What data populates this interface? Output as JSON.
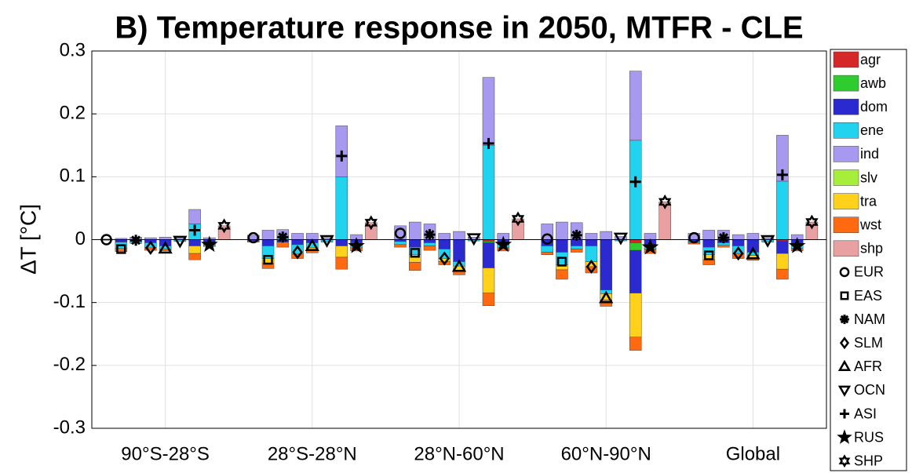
{
  "chart_data": {
    "type": "grouped-stacked-bar",
    "title": "B) Temperature response in 2050, MTFR - CLE",
    "ylabel": "ΔT [°C]",
    "groups": [
      "90°S-28°S",
      "28°S-28°N",
      "28°N-60°N",
      "60°N-90°N",
      "Global"
    ],
    "ylim": [
      -0.3,
      0.3
    ],
    "yticks": [
      -0.3,
      -0.2,
      -0.1,
      0,
      0.1,
      0.2,
      0.3
    ],
    "grid": true,
    "legend": "outside-right",
    "series": [
      {
        "name": "agr",
        "color": "#d62728",
        "values": [
          [
            0,
            0,
            0,
            0,
            0,
            0,
            0,
            0,
            0
          ],
          [
            0,
            0,
            0,
            0,
            0,
            0,
            0,
            0,
            0
          ],
          [
            0,
            0,
            0,
            0,
            0,
            0,
            -0.003,
            0,
            0
          ],
          [
            0,
            0,
            0,
            0,
            0,
            0,
            -0.005,
            0,
            0
          ],
          [
            0,
            0,
            0,
            0,
            0,
            0,
            -0.002,
            0,
            0
          ]
        ]
      },
      {
        "name": "awb",
        "color": "#2ecc2e",
        "values": [
          [
            0,
            0,
            0,
            0,
            0,
            0,
            0,
            0,
            0
          ],
          [
            0,
            0,
            0,
            0,
            0,
            0,
            0,
            0,
            0
          ],
          [
            0,
            0,
            0,
            0,
            0,
            0,
            -0.002,
            0,
            0
          ],
          [
            0,
            0,
            0,
            0,
            0,
            0,
            -0.012,
            0,
            0
          ],
          [
            0,
            0,
            0,
            0,
            0,
            0,
            0,
            0,
            0
          ]
        ]
      },
      {
        "name": "dom",
        "color": "#2a2ad0",
        "values": [
          [
            0,
            -0.004,
            -0.003,
            -0.005,
            -0.01,
            0,
            -0.01,
            -0.005,
            0
          ],
          [
            -0.002,
            -0.01,
            -0.004,
            -0.008,
            -0.005,
            0,
            -0.01,
            -0.005,
            0
          ],
          [
            -0.003,
            -0.012,
            -0.005,
            -0.015,
            -0.035,
            0,
            -0.04,
            -0.008,
            0
          ],
          [
            -0.01,
            -0.02,
            -0.01,
            -0.01,
            -0.08,
            0,
            -0.068,
            -0.008,
            0
          ],
          [
            -0.003,
            -0.012,
            -0.005,
            -0.01,
            -0.02,
            0,
            -0.02,
            -0.008,
            0
          ]
        ]
      },
      {
        "name": "ene",
        "color": "#22d3f0",
        "values": [
          [
            -0.001,
            -0.01,
            -0.003,
            -0.008,
            -0.005,
            -0.003,
            0.025,
            -0.004,
            0
          ],
          [
            0,
            -0.02,
            0.004,
            -0.015,
            -0.008,
            -0.004,
            0.1,
            -0.008,
            0
          ],
          [
            -0.005,
            -0.012,
            -0.005,
            -0.015,
            -0.007,
            -0.002,
            0.15,
            -0.005,
            0
          ],
          [
            -0.01,
            -0.02,
            -0.005,
            -0.025,
            -0.006,
            -0.002,
            0.158,
            -0.007,
            0
          ],
          [
            -0.002,
            -0.012,
            -0.004,
            -0.012,
            -0.005,
            -0.004,
            0.093,
            -0.006,
            0
          ]
        ]
      },
      {
        "name": "ind",
        "color": "#a899f0",
        "values": [
          [
            0.001,
            0.002,
            0.004,
            0.003,
            0.004,
            0.002,
            0.023,
            0.003,
            0
          ],
          [
            0.007,
            0.015,
            0.012,
            0.01,
            0.01,
            0.003,
            0.081,
            0.008,
            0
          ],
          [
            0.022,
            0.028,
            0.025,
            0.01,
            0.013,
            0.004,
            0.108,
            0.01,
            0
          ],
          [
            0.025,
            0.028,
            0.027,
            0.01,
            0.013,
            0.005,
            0.11,
            0.01,
            0
          ],
          [
            0.01,
            0.015,
            0.015,
            0.008,
            0.01,
            0.003,
            0.073,
            0.008,
            0
          ]
        ]
      },
      {
        "name": "slv",
        "color": "#a6ee3a",
        "values": [
          [
            0,
            0,
            0,
            0,
            0,
            0,
            0,
            0,
            0
          ],
          [
            0,
            0,
            0,
            0,
            0,
            0,
            0,
            0,
            0
          ],
          [
            0,
            0,
            0,
            0,
            0,
            0,
            0,
            0,
            0
          ],
          [
            0,
            0,
            0,
            0,
            0,
            0,
            0,
            0,
            0
          ],
          [
            0,
            0,
            0,
            0,
            0,
            0,
            0,
            0,
            0
          ]
        ]
      },
      {
        "name": "tra",
        "color": "#ffd11a",
        "values": [
          [
            0,
            0,
            0,
            0,
            0,
            0,
            -0.012,
            0,
            0
          ],
          [
            0,
            -0.008,
            0,
            0,
            -0.004,
            0,
            -0.018,
            0,
            0
          ],
          [
            0,
            -0.012,
            0,
            -0.005,
            -0.007,
            0,
            -0.04,
            0,
            0
          ],
          [
            0,
            -0.008,
            0,
            -0.008,
            -0.01,
            0,
            -0.07,
            0,
            0
          ],
          [
            0,
            -0.008,
            0,
            0,
            -0.004,
            0,
            -0.025,
            0,
            0
          ]
        ]
      },
      {
        "name": "wst",
        "color": "#ff6a10",
        "values": [
          [
            0,
            -0.005,
            0,
            -0.004,
            -0.003,
            0,
            -0.01,
            -0.002,
            0
          ],
          [
            -0.002,
            -0.008,
            -0.008,
            -0.007,
            -0.004,
            0,
            -0.019,
            -0.005,
            0
          ],
          [
            -0.004,
            -0.013,
            -0.007,
            -0.005,
            -0.007,
            0,
            -0.02,
            -0.005,
            0
          ],
          [
            -0.004,
            -0.015,
            -0.005,
            -0.01,
            -0.01,
            0,
            -0.021,
            -0.007,
            0
          ],
          [
            -0.002,
            -0.008,
            -0.003,
            -0.008,
            -0.004,
            0,
            -0.016,
            -0.004,
            0
          ]
        ]
      },
      {
        "name": "shp",
        "color": "#e8a0a0",
        "values": [
          [
            0,
            0,
            0,
            0,
            0,
            0,
            0,
            0,
            0.022
          ],
          [
            0,
            0,
            0,
            0,
            0,
            0,
            0,
            0,
            0.027
          ],
          [
            0,
            0,
            0,
            0,
            0,
            0,
            0,
            0,
            0.033
          ],
          [
            0,
            0,
            0,
            0,
            0,
            0,
            0,
            0,
            0.06
          ],
          [
            0,
            0,
            0,
            0,
            0,
            0,
            0,
            0,
            0.028
          ]
        ]
      }
    ],
    "markers": [
      {
        "name": "EUR",
        "symbol": "circle",
        "values": [
          0,
          0.003,
          0.01,
          0.001,
          0.003
        ]
      },
      {
        "name": "EAS",
        "symbol": "square",
        "values": [
          -0.015,
          -0.032,
          -0.021,
          -0.035,
          -0.025
        ]
      },
      {
        "name": "NAM",
        "symbol": "asterisk",
        "values": [
          -0.001,
          0.004,
          0.008,
          0.007,
          0.003
        ]
      },
      {
        "name": "SLM",
        "symbol": "diamond",
        "values": [
          -0.013,
          -0.02,
          -0.03,
          -0.043,
          -0.022
        ]
      },
      {
        "name": "AFR",
        "symbol": "triangle-up",
        "values": [
          -0.014,
          -0.01,
          -0.043,
          -0.093,
          -0.023
        ]
      },
      {
        "name": "OCN",
        "symbol": "triangle-down",
        "values": [
          -0.002,
          -0.001,
          0.002,
          0.003,
          -0.001
        ]
      },
      {
        "name": "ASI",
        "symbol": "plus",
        "values": [
          0.015,
          0.133,
          0.153,
          0.092,
          0.103
        ]
      },
      {
        "name": "RUS",
        "symbol": "star",
        "values": [
          -0.008,
          -0.01,
          -0.008,
          -0.012,
          -0.01
        ]
      },
      {
        "name": "SHP",
        "symbol": "hexagram",
        "values": [
          0.022,
          0.027,
          0.033,
          0.06,
          0.028
        ]
      }
    ]
  }
}
